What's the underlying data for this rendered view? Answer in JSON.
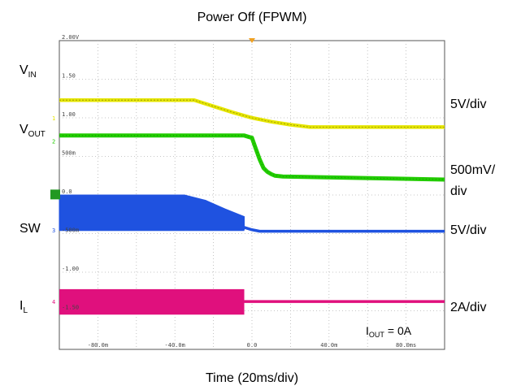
{
  "chart_data": {
    "type": "line",
    "title": "Power Off (FPWM)",
    "xlabel": "Time (20ms/div)",
    "x_ticks": [
      "-80.0m",
      "-40.0m",
      "0.0",
      "40.0m",
      "80.0ms"
    ],
    "y_ticks": [
      "2.00V",
      "1.50",
      "1.00",
      "500m",
      "0.0",
      "-500m",
      "-1.00",
      "-1.50"
    ],
    "annotation": "= 0A",
    "annotation_label": {
      "main": "I",
      "sub": "OUT"
    },
    "xlim": [
      -100,
      100
    ],
    "ylim": [
      -2.0,
      2.0
    ],
    "grid": true,
    "series": [
      {
        "name_main": "V",
        "name_sub": "IN",
        "scale": "5V/div",
        "scale2": "",
        "marker": "1",
        "color": "#e6e600",
        "x": [
          -100,
          -30,
          -20,
          -10,
          0,
          10,
          20,
          30,
          100
        ],
        "y": [
          1.23,
          1.23,
          1.15,
          1.07,
          1.0,
          0.95,
          0.91,
          0.88,
          0.88
        ]
      },
      {
        "name_main": "V",
        "name_sub": "OUT",
        "scale": "500mV/",
        "scale2": "div",
        "marker": "2",
        "color": "#22cc00",
        "x": [
          -100,
          -4,
          0,
          2,
          4,
          6,
          8,
          10,
          12,
          16,
          100
        ],
        "y": [
          0.77,
          0.77,
          0.74,
          0.6,
          0.46,
          0.35,
          0.3,
          0.27,
          0.25,
          0.24,
          0.2
        ]
      },
      {
        "name_main": "SW",
        "name_sub": "",
        "scale": "5V/div",
        "scale2": "",
        "marker": "3",
        "color": "#1f52e0",
        "envelope_top_x": [
          -100,
          -35,
          -24,
          -14,
          -4,
          -4
        ],
        "envelope_top_y": [
          0.0,
          0.0,
          -0.07,
          -0.18,
          -0.28,
          -0.45
        ],
        "baseline": -0.45,
        "settled": -0.47
      },
      {
        "name_main": "I",
        "name_sub": "L",
        "scale": "2A/div",
        "scale2": "",
        "marker": "4",
        "color": "#e0107d",
        "envelope_top": -1.22,
        "envelope_bottom": -1.55,
        "off_at": -4,
        "settled": -1.38
      }
    ]
  }
}
